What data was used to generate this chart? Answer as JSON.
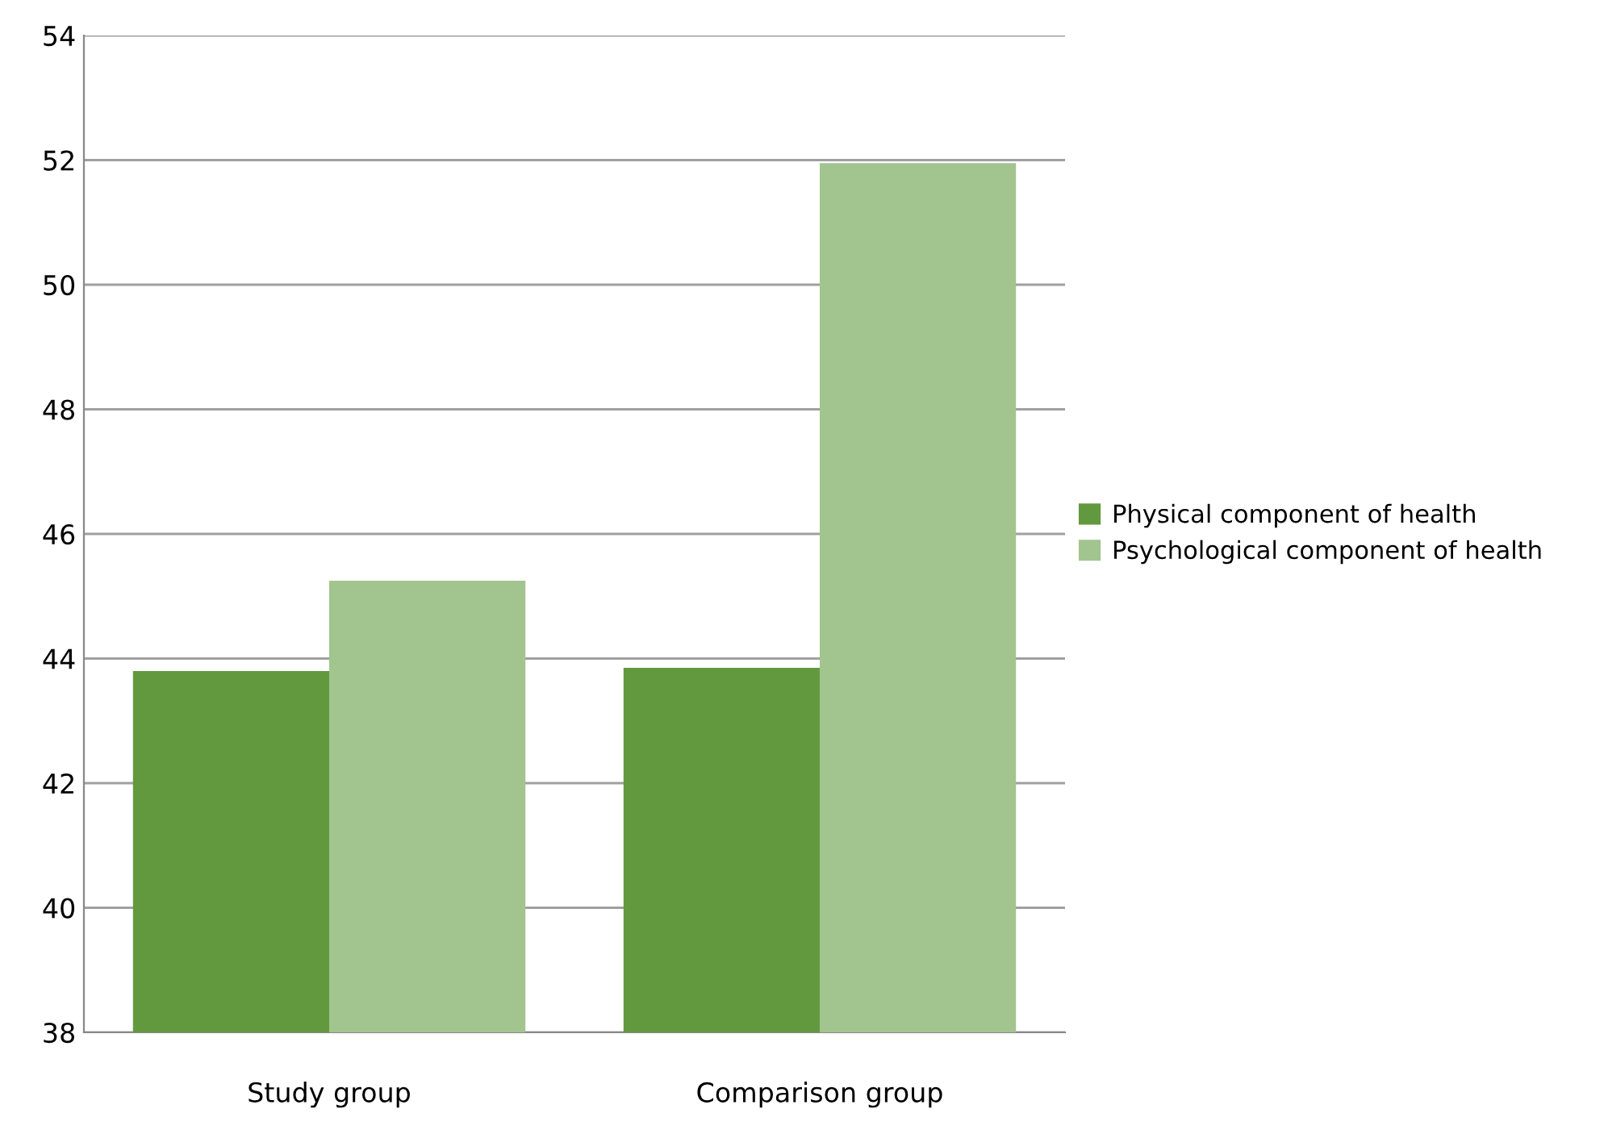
{
  "chart_data": {
    "type": "bar",
    "categories": [
      "Study group",
      "Comparison group"
    ],
    "series": [
      {
        "name": "Physical component of health",
        "color": "#62993e",
        "values": [
          43.8,
          43.85
        ]
      },
      {
        "name": "Psychological component of health",
        "color": "#a2c48f",
        "values": [
          45.25,
          51.95
        ]
      }
    ],
    "ylim": [
      38,
      54
    ],
    "yticks": [
      38,
      40,
      42,
      44,
      46,
      48,
      50,
      52,
      54
    ],
    "grid": "y",
    "legend": "right"
  }
}
